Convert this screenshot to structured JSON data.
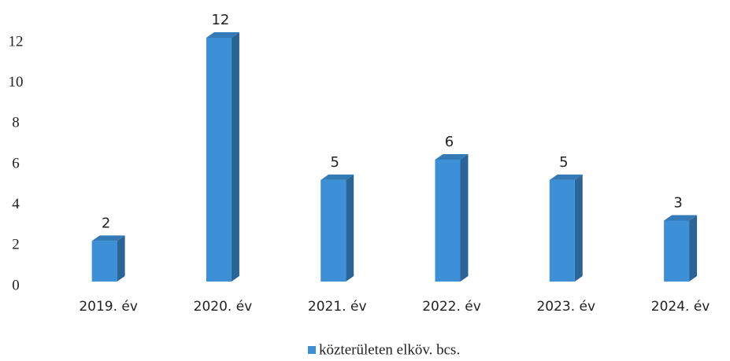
{
  "chart_data": {
    "type": "bar3d",
    "categories": [
      "2019. év",
      "2020. év",
      "2021. év",
      "2022. év",
      "2023. év",
      "2024. év"
    ],
    "series": [
      {
        "name": "közterületen elköv. bcs.",
        "color": "#3d8fd6",
        "values": [
          2,
          12,
          5,
          6,
          5,
          3
        ]
      }
    ],
    "ylim": [
      0,
      12
    ],
    "yticks": [
      0,
      2,
      4,
      6,
      8,
      10,
      12
    ],
    "grid": false,
    "legend": "bottom"
  }
}
